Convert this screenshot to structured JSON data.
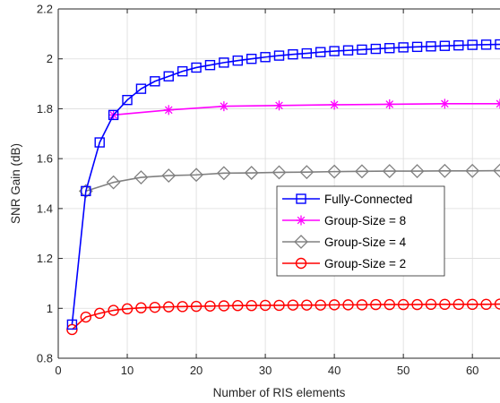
{
  "chart_data": {
    "type": "line",
    "xlabel": "Number of RIS elements",
    "ylabel": "SNR Gain (dB)",
    "xlim": [
      0,
      64
    ],
    "ylim": [
      0.8,
      2.2
    ],
    "xticks": [
      0,
      10,
      20,
      30,
      40,
      50,
      60
    ],
    "yticks": [
      0.8,
      1,
      1.2,
      1.4,
      1.6,
      1.8,
      2,
      2.2
    ],
    "xtick_labels": [
      "0",
      "10",
      "20",
      "30",
      "40",
      "50",
      "60"
    ],
    "ytick_labels": [
      "0.8",
      "1",
      "1.2",
      "1.4",
      "1.6",
      "1.8",
      "2",
      "2.2"
    ],
    "grid": true,
    "legend_position": "center-right",
    "series": [
      {
        "name": "Fully-Connected",
        "color": "#0000ff",
        "marker": "square",
        "x": [
          2,
          4,
          6,
          8,
          10,
          12,
          14,
          16,
          18,
          20,
          22,
          24,
          26,
          28,
          30,
          32,
          34,
          36,
          38,
          40,
          42,
          44,
          46,
          48,
          50,
          52,
          54,
          56,
          58,
          60,
          62,
          64
        ],
        "y": [
          0.935,
          1.47,
          1.665,
          1.775,
          1.835,
          1.88,
          1.91,
          1.93,
          1.95,
          1.965,
          1.975,
          1.985,
          1.993,
          2.0,
          2.007,
          2.013,
          2.018,
          2.022,
          2.027,
          2.031,
          2.034,
          2.037,
          2.04,
          2.043,
          2.046,
          2.048,
          2.05,
          2.052,
          2.054,
          2.056,
          2.057,
          2.058
        ]
      },
      {
        "name": "Group-Size = 8",
        "color": "#ff00ff",
        "marker": "asterisk",
        "x": [
          8,
          16,
          24,
          32,
          40,
          48,
          56,
          64
        ],
        "y": [
          1.775,
          1.795,
          1.81,
          1.813,
          1.816,
          1.818,
          1.82,
          1.82
        ]
      },
      {
        "name": "Group-Size = 4",
        "color": "#808080",
        "marker": "diamond",
        "x": [
          4,
          8,
          12,
          16,
          20,
          24,
          28,
          32,
          36,
          40,
          44,
          48,
          52,
          56,
          60,
          64
        ],
        "y": [
          1.47,
          1.505,
          1.525,
          1.532,
          1.535,
          1.542,
          1.543,
          1.545,
          1.546,
          1.548,
          1.549,
          1.55,
          1.55,
          1.551,
          1.551,
          1.552
        ]
      },
      {
        "name": "Group-Size = 2",
        "color": "#ff0000",
        "marker": "circle",
        "x": [
          2,
          4,
          6,
          8,
          10,
          12,
          14,
          16,
          18,
          20,
          22,
          24,
          26,
          28,
          30,
          32,
          34,
          36,
          38,
          40,
          42,
          44,
          46,
          48,
          50,
          52,
          54,
          56,
          58,
          60,
          62,
          64
        ],
        "y": [
          0.915,
          0.965,
          0.98,
          0.992,
          0.998,
          1.002,
          1.004,
          1.006,
          1.007,
          1.008,
          1.009,
          1.01,
          1.011,
          1.011,
          1.012,
          1.012,
          1.013,
          1.013,
          1.013,
          1.014,
          1.014,
          1.014,
          1.015,
          1.015,
          1.015,
          1.015,
          1.016,
          1.016,
          1.016,
          1.016,
          1.016,
          1.017
        ]
      }
    ]
  }
}
